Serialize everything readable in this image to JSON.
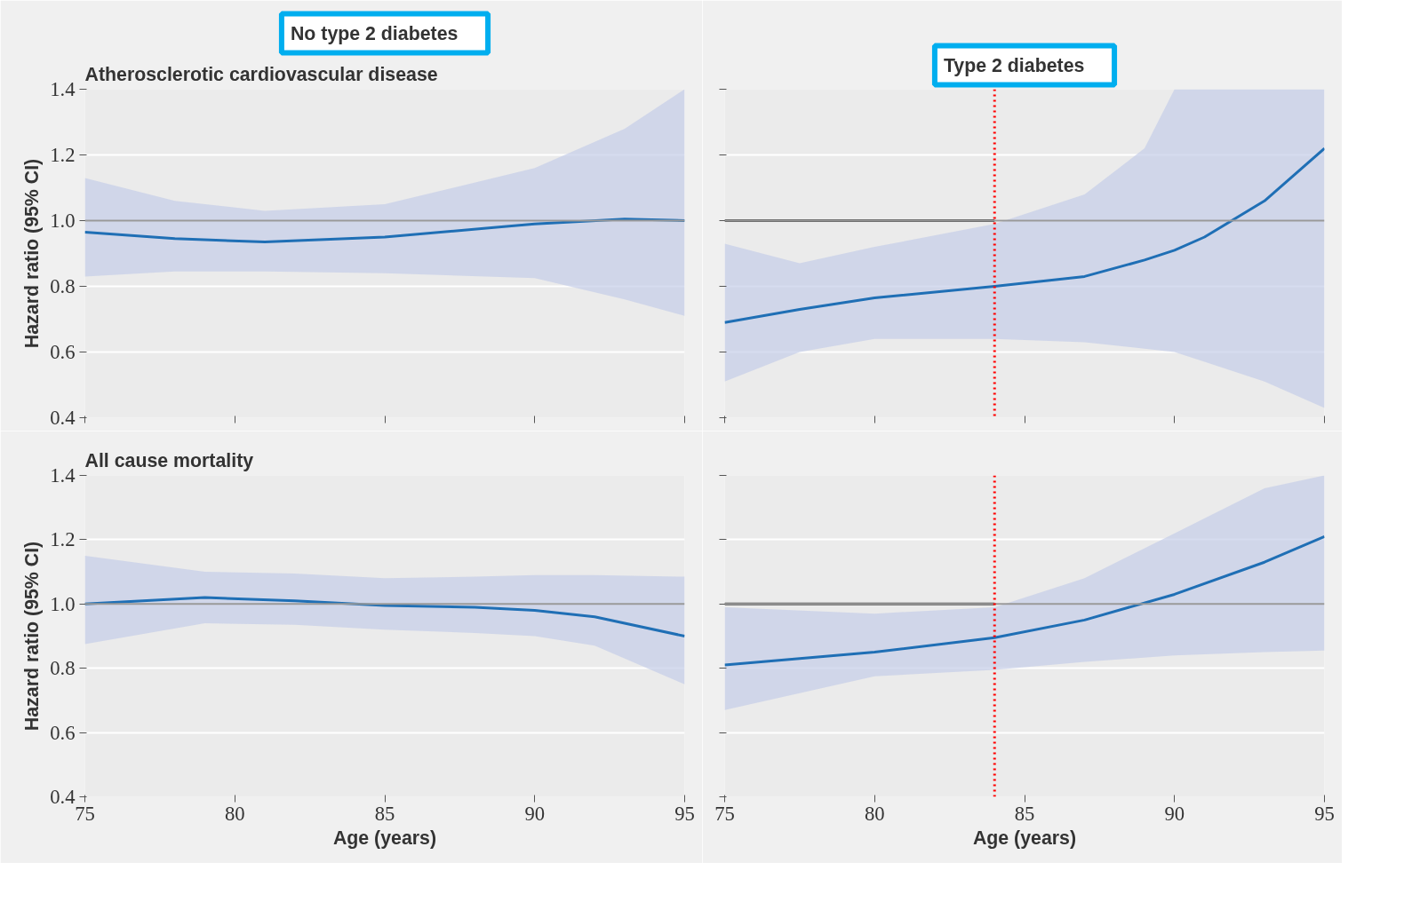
{
  "chart_data": [
    {
      "type": "line",
      "title": "No type 2 diabetes",
      "subtitle": "Atherosclerotic cardiovascular disease",
      "ylabel": "Hazard ratio (95% CI)",
      "xlim": [
        75,
        95
      ],
      "xticks": [
        75,
        80,
        85,
        90,
        95
      ],
      "ylim": [
        0.4,
        1.4
      ],
      "yticks": [
        {
          "value": 0.4,
          "label": "0.4"
        },
        {
          "value": 0.6,
          "label": "0.6"
        },
        {
          "value": 0.8,
          "label": "0.8"
        },
        {
          "value": 1.0,
          "label": "1.0"
        },
        {
          "value": 1.2,
          "label": "1.2"
        },
        {
          "value": 1.4,
          "label": "1.4"
        }
      ],
      "grid": "y",
      "tick_labels": "y",
      "series": [
        {
          "color": "#1f6fb5",
          "x": [
            75,
            78,
            81,
            85,
            90,
            93,
            95
          ],
          "values": [
            0.965,
            0.945,
            0.935,
            0.95,
            0.99,
            1.005,
            1.0
          ],
          "lower": [
            0.83,
            0.845,
            0.845,
            0.84,
            0.825,
            0.76,
            0.71
          ],
          "upper": [
            1.13,
            1.06,
            1.03,
            1.05,
            1.16,
            1.28,
            1.4
          ]
        }
      ],
      "ref_lines": [
        {
          "axis": "y",
          "value": 1.0,
          "color": "#999999"
        }
      ]
    },
    {
      "type": "line",
      "title": "Type 2 diabetes",
      "xlim": [
        75,
        95
      ],
      "xticks": [
        75,
        80,
        85,
        90,
        95
      ],
      "ylim": [
        0.4,
        1.4
      ],
      "yticks": [
        {
          "value": 0.4,
          "label": null
        },
        {
          "value": 0.6,
          "label": null
        },
        {
          "value": 0.8,
          "label": null
        },
        {
          "value": 1.0,
          "label": null
        },
        {
          "value": 1.2,
          "label": null
        },
        {
          "value": 1.4,
          "label": null
        }
      ],
      "grid": "y",
      "tick_labels": false,
      "series": [
        {
          "color": "#1f6fb5",
          "x": [
            75,
            77.5,
            80,
            84,
            87,
            89,
            90,
            91,
            93,
            95
          ],
          "values": [
            0.69,
            0.73,
            0.765,
            0.8,
            0.83,
            0.88,
            0.91,
            0.95,
            1.06,
            1.22
          ],
          "lower": [
            0.51,
            0.6,
            0.64,
            0.64,
            0.63,
            0.61,
            0.6,
            0.57,
            0.51,
            0.43
          ],
          "upper": [
            0.93,
            0.87,
            0.92,
            0.99,
            1.08,
            1.22,
            1.4,
            1.4,
            1.4,
            1.4
          ]
        },
        {
          "color": "#444444",
          "x": [
            75,
            84
          ],
          "values": [
            1.0,
            1.0
          ]
        }
      ],
      "ref_lines": [
        {
          "axis": "y",
          "value": 1.0,
          "color": "#999999"
        },
        {
          "axis": "x",
          "value": 84,
          "color": "#ff0000",
          "line_style": "dotted"
        }
      ]
    },
    {
      "type": "line",
      "subtitle": "All cause mortality",
      "ylabel": "Hazard ratio (95% CI)",
      "xlabel": "Age (years)",
      "xlim": [
        75,
        95
      ],
      "xticks": [
        75,
        80,
        85,
        90,
        95
      ],
      "ylim": [
        0.4,
        1.4
      ],
      "yticks": [
        {
          "value": 0.4,
          "label": "0.4"
        },
        {
          "value": 0.6,
          "label": "0.6"
        },
        {
          "value": 0.8,
          "label": "0.8"
        },
        {
          "value": 1.0,
          "label": "1.0"
        },
        {
          "value": 1.2,
          "label": "1.2"
        },
        {
          "value": 1.4,
          "label": "1.4"
        }
      ],
      "grid": "y",
      "series": [
        {
          "color": "#1f6fb5",
          "x": [
            75,
            79,
            82,
            85,
            88,
            90,
            92,
            95
          ],
          "values": [
            1.0,
            1.02,
            1.01,
            0.995,
            0.99,
            0.98,
            0.96,
            0.9
          ],
          "lower": [
            0.875,
            0.94,
            0.935,
            0.92,
            0.91,
            0.9,
            0.87,
            0.75
          ],
          "upper": [
            1.15,
            1.1,
            1.095,
            1.08,
            1.085,
            1.09,
            1.09,
            1.085
          ]
        }
      ],
      "ref_lines": [
        {
          "axis": "y",
          "value": 1.0,
          "color": "#999999"
        }
      ]
    },
    {
      "type": "line",
      "xlabel": "Age (years)",
      "xlim": [
        75,
        95
      ],
      "xticks": [
        75,
        80,
        85,
        90,
        95
      ],
      "ylim": [
        0.4,
        1.4
      ],
      "yticks": [
        {
          "value": 0.4,
          "label": null
        },
        {
          "value": 0.6,
          "label": null
        },
        {
          "value": 0.8,
          "label": null
        },
        {
          "value": 1.0,
          "label": null
        },
        {
          "value": 1.2,
          "label": null
        },
        {
          "value": 1.4,
          "label": null
        }
      ],
      "grid": "y",
      "tick_labels": "x",
      "series": [
        {
          "color": "#1f6fb5",
          "x": [
            75,
            80,
            84,
            87,
            90,
            93,
            95
          ],
          "values": [
            0.81,
            0.85,
            0.895,
            0.95,
            1.03,
            1.13,
            1.21
          ],
          "lower": [
            0.67,
            0.775,
            0.795,
            0.82,
            0.84,
            0.85,
            0.855
          ],
          "upper": [
            0.99,
            0.97,
            0.99,
            1.08,
            1.22,
            1.36,
            1.4
          ]
        },
        {
          "color": "#444444",
          "x": [
            75,
            84
          ],
          "values": [
            1.0,
            1.0
          ]
        }
      ],
      "ref_lines": [
        {
          "axis": "y",
          "value": 1.0,
          "color": "#999999"
        },
        {
          "axis": "x",
          "value": 84,
          "color": "#ff0000",
          "line_style": "dotted"
        }
      ]
    }
  ]
}
